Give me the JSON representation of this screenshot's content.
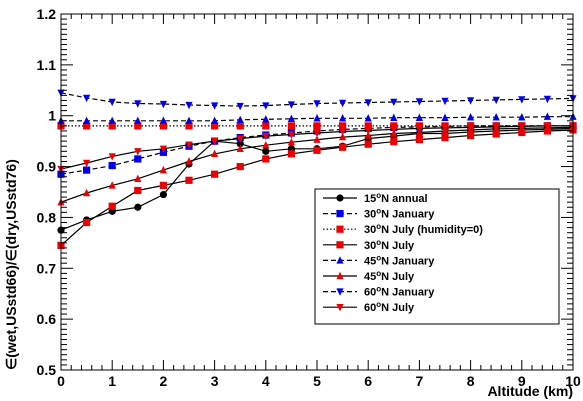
{
  "chart_data": {
    "type": "line",
    "xlabel": "Altitude (km)",
    "ylabel": "∈(wet,USstd66)/∈(dry,USstd76)",
    "xlim": [
      0,
      10
    ],
    "ylim": [
      0.5,
      1.2
    ],
    "x_ticks": [
      "0",
      "1",
      "2",
      "3",
      "4",
      "5",
      "6",
      "7",
      "8",
      "9",
      "10"
    ],
    "y_ticks": [
      "0.5",
      "0.6",
      "0.7",
      "0.8",
      "0.9",
      "1",
      "1.1",
      "1.2"
    ],
    "grid": false,
    "legend_position": "right",
    "series": [
      {
        "name": "15°N annual",
        "color": "#000000",
        "line": "solid",
        "marker": "circle",
        "x": [
          0,
          0.5,
          1,
          1.5,
          2,
          2.5,
          3,
          3.5,
          4,
          4.5,
          5,
          5.5,
          6,
          6.5,
          7,
          7.5,
          8,
          8.5,
          9,
          9.5,
          10
        ],
        "y": [
          0.775,
          0.795,
          0.812,
          0.82,
          0.845,
          0.905,
          0.95,
          0.945,
          0.93,
          0.935,
          0.935,
          0.94,
          0.955,
          0.96,
          0.965,
          0.965,
          0.968,
          0.97,
          0.972,
          0.973,
          0.975
        ]
      },
      {
        "name": "30°N January",
        "color": "#0000ee",
        "line": "dashed",
        "marker": "square",
        "x": [
          0,
          0.5,
          1,
          1.5,
          2,
          2.5,
          3,
          3.5,
          4,
          4.5,
          5,
          5.5,
          6,
          6.5,
          7,
          7.5,
          8,
          8.5,
          9,
          9.5,
          10
        ],
        "y": [
          0.885,
          0.893,
          0.902,
          0.915,
          0.928,
          0.94,
          0.95,
          0.957,
          0.962,
          0.966,
          0.97,
          0.973,
          0.975,
          0.977,
          0.978,
          0.979,
          0.98,
          0.98,
          0.98,
          0.98,
          0.98
        ]
      },
      {
        "name": "30°N July (humidity=0)",
        "color": "#ee0000",
        "line": "dotted",
        "marker": "square",
        "x": [
          0,
          0.5,
          1,
          1.5,
          2,
          2.5,
          3,
          3.5,
          4,
          4.5,
          5,
          5.5,
          6,
          6.5,
          7,
          7.5,
          8,
          8.5,
          9,
          9.5,
          10
        ],
        "y": [
          0.98,
          0.98,
          0.98,
          0.98,
          0.98,
          0.98,
          0.98,
          0.98,
          0.98,
          0.98,
          0.98,
          0.98,
          0.98,
          0.98,
          0.98,
          0.98,
          0.98,
          0.98,
          0.98,
          0.98,
          0.98
        ]
      },
      {
        "name": "30°N July",
        "color": "#ee0000",
        "line": "solid",
        "marker": "square",
        "x": [
          0,
          0.5,
          1,
          1.5,
          2,
          2.5,
          3,
          3.5,
          4,
          4.5,
          5,
          5.5,
          6,
          6.5,
          7,
          7.5,
          8,
          8.5,
          9,
          9.5,
          10
        ],
        "y": [
          0.745,
          0.79,
          0.822,
          0.853,
          0.863,
          0.873,
          0.885,
          0.9,
          0.915,
          0.925,
          0.932,
          0.938,
          0.944,
          0.949,
          0.953,
          0.957,
          0.961,
          0.964,
          0.967,
          0.97,
          0.972
        ]
      },
      {
        "name": "45°N January",
        "color": "#0000ee",
        "line": "dashed",
        "marker": "triangle-up",
        "x": [
          0,
          0.5,
          1,
          1.5,
          2,
          2.5,
          3,
          3.5,
          4,
          4.5,
          5,
          5.5,
          6,
          6.5,
          7,
          7.5,
          8,
          8.5,
          9,
          9.5,
          10
        ],
        "y": [
          0.99,
          0.99,
          0.99,
          0.99,
          0.99,
          0.99,
          0.99,
          0.992,
          0.993,
          0.994,
          0.995,
          0.995,
          0.995,
          0.996,
          0.996,
          0.996,
          0.997,
          0.997,
          0.997,
          0.998,
          0.998
        ]
      },
      {
        "name": "45°N July",
        "color": "#ee0000",
        "line": "solid",
        "marker": "triangle-up",
        "x": [
          0,
          0.5,
          1,
          1.5,
          2,
          2.5,
          3,
          3.5,
          4,
          4.5,
          5,
          5.5,
          6,
          6.5,
          7,
          7.5,
          8,
          8.5,
          9,
          9.5,
          10
        ],
        "y": [
          0.83,
          0.848,
          0.863,
          0.876,
          0.893,
          0.91,
          0.925,
          0.935,
          0.942,
          0.948,
          0.953,
          0.958,
          0.961,
          0.965,
          0.967,
          0.97,
          0.972,
          0.974,
          0.975,
          0.976,
          0.977
        ]
      },
      {
        "name": "60°N January",
        "color": "#0000ee",
        "line": "dashed",
        "marker": "triangle-down",
        "x": [
          0,
          0.5,
          1,
          1.5,
          2,
          2.5,
          3,
          3.5,
          4,
          4.5,
          5,
          5.5,
          6,
          6.5,
          7,
          7.5,
          8,
          8.5,
          9,
          9.5,
          10
        ],
        "y": [
          1.045,
          1.035,
          1.027,
          1.024,
          1.023,
          1.021,
          1.02,
          1.019,
          1.02,
          1.022,
          1.024,
          1.025,
          1.026,
          1.027,
          1.028,
          1.029,
          1.03,
          1.031,
          1.032,
          1.033,
          1.034
        ]
      },
      {
        "name": "60°N July",
        "color": "#ee0000",
        "line": "solid",
        "marker": "triangle-down",
        "x": [
          0,
          0.5,
          1,
          1.5,
          2,
          2.5,
          3,
          3.5,
          4,
          4.5,
          5,
          5.5,
          6,
          6.5,
          7,
          7.5,
          8,
          8.5,
          9,
          9.5,
          10
        ],
        "y": [
          0.895,
          0.907,
          0.92,
          0.93,
          0.935,
          0.943,
          0.95,
          0.955,
          0.96,
          0.963,
          0.966,
          0.969,
          0.971,
          0.973,
          0.975,
          0.976,
          0.977,
          0.978,
          0.979,
          0.98,
          0.98
        ]
      }
    ]
  }
}
